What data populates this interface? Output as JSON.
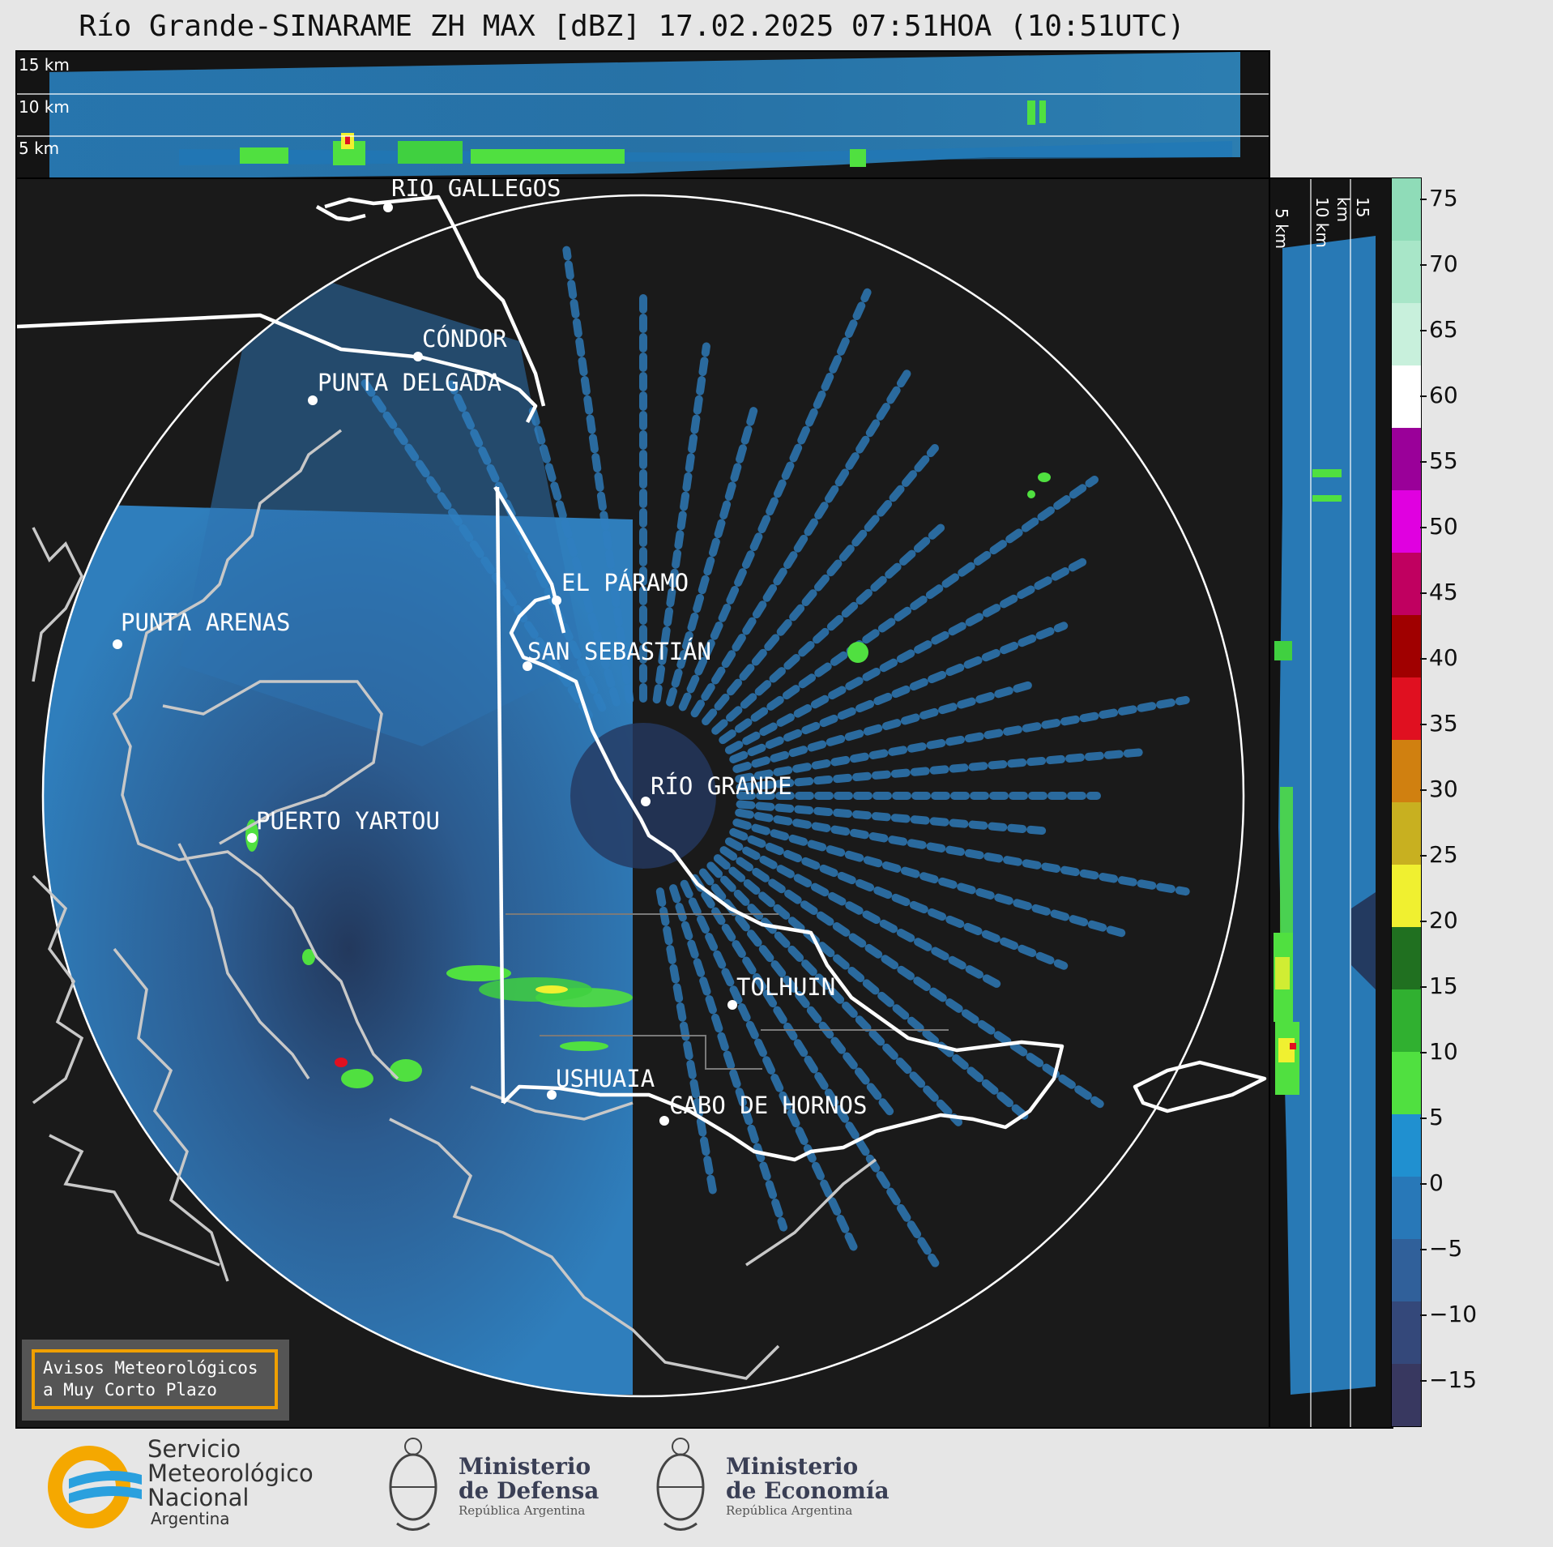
{
  "title": "Río Grande-SINARAME ZH MAX [dBZ] 17.02.2025 07:51HOA (10:51UTC)",
  "top_panel": {
    "height_labels": [
      "15 km",
      "10 km",
      "5 km"
    ]
  },
  "side_panel": {
    "height_labels": [
      "5 km",
      "10 km",
      "15 km"
    ]
  },
  "cities": [
    {
      "name": "RÍO GALLEGOS"
    },
    {
      "name": "CÓNDOR"
    },
    {
      "name": "PUNTA DELGADA"
    },
    {
      "name": "EL PÁRAMO"
    },
    {
      "name": "SAN SEBASTIÁN"
    },
    {
      "name": "PUNTA ARENAS"
    },
    {
      "name": "RÍO GRANDE"
    },
    {
      "name": "PUERTO YARTOU"
    },
    {
      "name": "TOLHUIN"
    },
    {
      "name": "USHUAIA"
    },
    {
      "name": "CABO DE HORNOS"
    }
  ],
  "colorbar": {
    "ticks": [
      "75",
      "70",
      "65",
      "60",
      "55",
      "50",
      "45",
      "40",
      "35",
      "30",
      "25",
      "20",
      "15",
      "10",
      "5",
      "0",
      "−5",
      "−10",
      "−15"
    ],
    "unit": "dBZ",
    "colors": [
      "#8fdcb8",
      "#a8e6c8",
      "#c8f0dc",
      "#ffffff",
      "#9a0099",
      "#e000e0",
      "#c00060",
      "#a00000",
      "#e01020",
      "#d08010",
      "#c8b020",
      "#f0f030",
      "#207020",
      "#30b030",
      "#50e040",
      "#2090d0",
      "#2878b8",
      "#30609a",
      "#34487a",
      "#383860"
    ]
  },
  "notice": {
    "line1": "Avisos Meteorológicos",
    "line2": "a Muy Corto Plazo"
  },
  "footer": {
    "smn": {
      "line1": "Servicio",
      "line2": "Meteorológico",
      "line3": "Nacional",
      "line4": "Argentina"
    },
    "defensa": {
      "line1": "Ministerio",
      "line2": "de Defensa",
      "line3": "República Argentina"
    },
    "economia": {
      "line1": "Ministerio",
      "line2": "de Economía",
      "line3": "República Argentina"
    }
  }
}
